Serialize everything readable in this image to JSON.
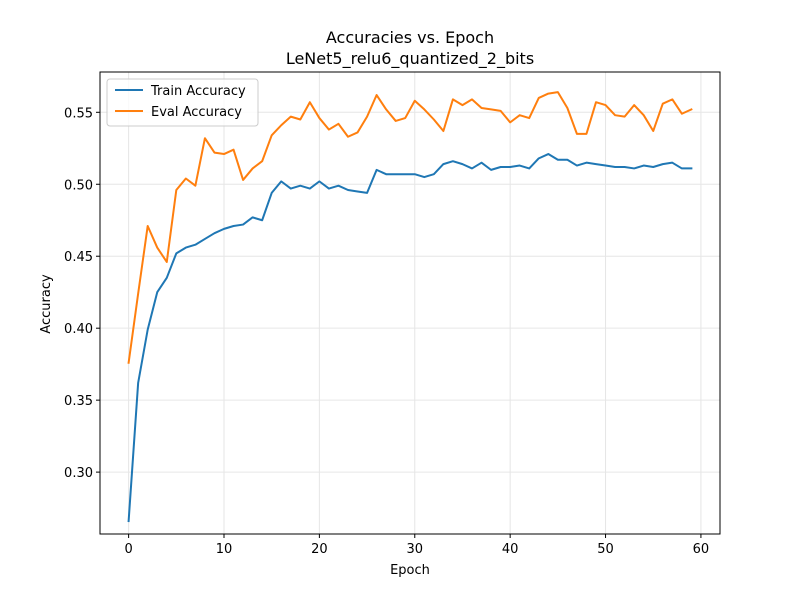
{
  "chart_data": {
    "type": "line",
    "title": "Accuracies vs. Epoch",
    "subtitle": "LeNet5_relu6_quantized_2_bits",
    "xlabel": "Epoch",
    "ylabel": "Accuracy",
    "xlim": [
      -3,
      62
    ],
    "ylim": [
      0.257,
      0.578
    ],
    "xticks": [
      0,
      10,
      20,
      30,
      40,
      50,
      60
    ],
    "yticks": [
      0.3,
      0.35,
      0.4,
      0.45,
      0.5,
      0.55
    ],
    "ytick_labels": [
      "0.30",
      "0.35",
      "0.40",
      "0.45",
      "0.50",
      "0.55"
    ],
    "grid": true,
    "legend_position": "upper-left",
    "x": [
      0,
      1,
      2,
      3,
      4,
      5,
      6,
      7,
      8,
      9,
      10,
      11,
      12,
      13,
      14,
      15,
      16,
      17,
      18,
      19,
      20,
      21,
      22,
      23,
      24,
      25,
      26,
      27,
      28,
      29,
      30,
      31,
      32,
      33,
      34,
      35,
      36,
      37,
      38,
      39,
      40,
      41,
      42,
      43,
      44,
      45,
      46,
      47,
      48,
      49,
      50,
      51,
      52,
      53,
      54,
      55,
      56,
      57,
      58,
      59
    ],
    "series": [
      {
        "name": "Train Accuracy",
        "color": "#1f77b4",
        "values": [
          0.266,
          0.362,
          0.399,
          0.425,
          0.435,
          0.452,
          0.456,
          0.458,
          0.462,
          0.466,
          0.469,
          0.471,
          0.472,
          0.477,
          0.475,
          0.494,
          0.502,
          0.497,
          0.499,
          0.497,
          0.502,
          0.497,
          0.499,
          0.496,
          0.495,
          0.494,
          0.51,
          0.507,
          0.507,
          0.507,
          0.507,
          0.505,
          0.507,
          0.514,
          0.516,
          0.514,
          0.511,
          0.515,
          0.51,
          0.512,
          0.512,
          0.513,
          0.511,
          0.518,
          0.521,
          0.517,
          0.517,
          0.513,
          0.515,
          0.514,
          0.513,
          0.512,
          0.512,
          0.511,
          0.513,
          0.512,
          0.514,
          0.515,
          0.511,
          0.511
        ]
      },
      {
        "name": "Eval Accuracy",
        "color": "#ff7f0e",
        "values": [
          0.376,
          0.424,
          0.471,
          0.456,
          0.446,
          0.496,
          0.504,
          0.499,
          0.532,
          0.522,
          0.521,
          0.524,
          0.503,
          0.511,
          0.516,
          0.534,
          0.541,
          0.547,
          0.545,
          0.557,
          0.546,
          0.538,
          0.542,
          0.533,
          0.536,
          0.547,
          0.562,
          0.552,
          0.544,
          0.546,
          0.558,
          0.552,
          0.545,
          0.537,
          0.559,
          0.555,
          0.559,
          0.553,
          0.552,
          0.551,
          0.543,
          0.548,
          0.546,
          0.56,
          0.563,
          0.564,
          0.553,
          0.535,
          0.535,
          0.557,
          0.555,
          0.548,
          0.547,
          0.555,
          0.548,
          0.537,
          0.556,
          0.559,
          0.549,
          0.552
        ]
      }
    ]
  }
}
